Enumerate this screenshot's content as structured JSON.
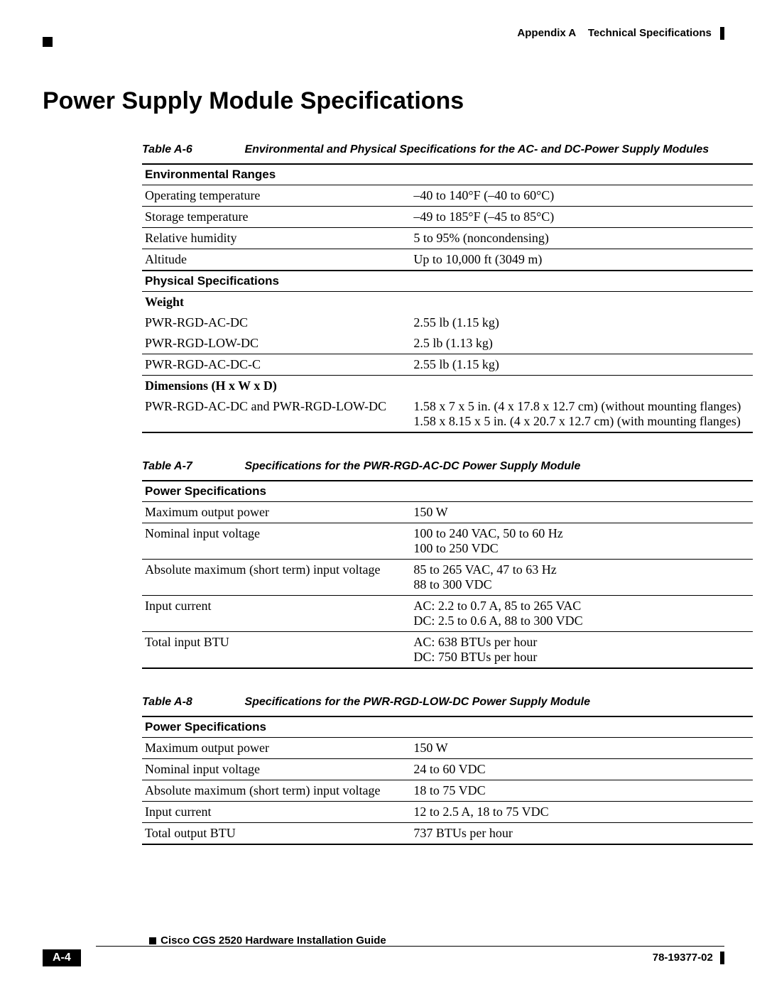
{
  "header": {
    "appendix": "Appendix A",
    "section": "Technical Specifications"
  },
  "title": "Power Supply Module Specifications",
  "tableA6": {
    "label": "Table A-6",
    "caption": "Environmental and Physical Specifications for the AC- and DC-Power Supply Modules",
    "section1": "Environmental Ranges",
    "row1a": "Operating temperature",
    "row1b": "–40 to 140°F (–40 to 60°C)",
    "row2a": "Storage temperature",
    "row2b": "–49 to 185°F (–45 to 85°C)",
    "row3a": "Relative humidity",
    "row3b": "5 to 95% (noncondensing)",
    "row4a": "Altitude",
    "row4b": "Up to 10,000 ft (3049 m)",
    "section2": "Physical Specifications",
    "weightLabel": "Weight",
    "w1a": "PWR-RGD-AC-DC",
    "w1b": "2.55 lb (1.15 kg)",
    "w2a": "PWR-RGD-LOW-DC",
    "w2b": "2.5 lb (1.13 kg)",
    "w3a": "PWR-RGD-AC-DC-C",
    "w3b": "2.55 lb (1.15 kg)",
    "dimLabel": "Dimensions (H x W x D)",
    "d1a": "PWR-RGD-AC-DC and PWR-RGD-LOW-DC",
    "d1b": "1.58 x 7 x 5 in. (4 x 17.8 x 12.7 cm) (without mounting flanges)\n1.58 x 8.15 x 5 in. (4 x 20.7 x 12.7 cm) (with mounting flanges)"
  },
  "tableA7": {
    "label": "Table A-7",
    "caption": "Specifications for the PWR-RGD-AC-DC Power Supply Module",
    "section1": "Power Specifications",
    "r1a": "Maximum output power",
    "r1b": "150 W",
    "r2a": "Nominal input voltage",
    "r2b": "100 to 240 VAC, 50 to 60 Hz\n100 to 250 VDC",
    "r3a": "Absolute maximum (short term) input voltage",
    "r3b": "85 to 265 VAC, 47 to 63 Hz\n88 to 300 VDC",
    "r4a": "Input current",
    "r4b": "AC: 2.2 to 0.7 A, 85 to 265 VAC\nDC: 2.5 to 0.6 A, 88 to 300 VDC",
    "r5a": "Total input BTU",
    "r5b": "AC: 638 BTUs per hour\nDC: 750 BTUs per hour"
  },
  "tableA8": {
    "label": "Table A-8",
    "caption": "Specifications for the PWR-RGD-LOW-DC Power Supply Module",
    "section1": "Power Specifications",
    "r1a": "Maximum output power",
    "r1b": "150 W",
    "r2a": "Nominal input voltage",
    "r2b": "24 to 60 VDC",
    "r3a": "Absolute maximum (short term) input voltage",
    "r3b": "18 to 75 VDC",
    "r4a": "Input current",
    "r4b": "12 to 2.5 A, 18 to 75 VDC",
    "r5a": "Total output BTU",
    "r5b": "737 BTUs per hour"
  },
  "footer": {
    "guide": "Cisco CGS 2520 Hardware Installation Guide",
    "page": "A-4",
    "doc": "78-19377-02"
  }
}
